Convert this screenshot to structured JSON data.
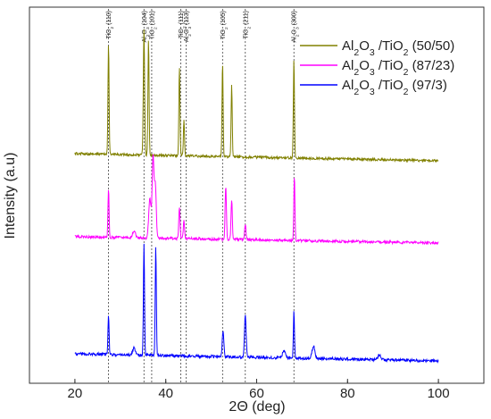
{
  "chart_data": {
    "type": "line",
    "title": "",
    "xlabel": "2Θ (deg)",
    "ylabel": "Intensity (a.u)",
    "xlim": [
      10,
      110
    ],
    "xticks": [
      20,
      40,
      60,
      80,
      100
    ],
    "grid": false,
    "legend": {
      "placement": "top-right",
      "entries": [
        {
          "label": "Al2O3 /TiO2 (50/50)",
          "color": "#808000"
        },
        {
          "label": "Al2O3 /TiO2 (87/23)",
          "color": "#ff00ff"
        },
        {
          "label": "Al2O3 /TiO2 (97/3)",
          "color": "#0000ff"
        }
      ]
    },
    "reference_lines": [
      {
        "x": 27.4,
        "label": "TiO2 (110)"
      },
      {
        "x": 35.2,
        "label": "Al2O3 (104)"
      },
      {
        "x": 36.9,
        "label": "TiO2 (101)"
      },
      {
        "x": 43.3,
        "label": "TiO2 (111)"
      },
      {
        "x": 44.5,
        "label": "Al2O3 (113)"
      },
      {
        "x": 52.5,
        "label": "TiO2 (105)"
      },
      {
        "x": 57.5,
        "label": "TiO2 (211)"
      },
      {
        "x": 68.2,
        "label": "Al2O3 (300)"
      }
    ],
    "series": [
      {
        "name": "Al2O3 /TiO2 (50/50)",
        "color": "#808000",
        "baseline": 172,
        "end": 180,
        "noise": 1.4,
        "peaks": [
          [
            27.4,
            125,
            0.12
          ],
          [
            35.2,
            140,
            0.14
          ],
          [
            36.2,
            130,
            0.12
          ],
          [
            43.0,
            100,
            0.12
          ],
          [
            44.0,
            40,
            0.12
          ],
          [
            52.5,
            105,
            0.12
          ],
          [
            54.5,
            80,
            0.12
          ],
          [
            68.2,
            110,
            0.12
          ]
        ]
      },
      {
        "name": "Al2O3 /TiO2 (87/23)",
        "color": "#ff00ff",
        "baseline": 265,
        "end": 272,
        "noise": 1.5,
        "peaks": [
          [
            27.4,
            55,
            0.12
          ],
          [
            36.5,
            45,
            0.25
          ],
          [
            37.2,
            90,
            0.2
          ],
          [
            37.7,
            60,
            0.2
          ],
          [
            43.0,
            35,
            0.14
          ],
          [
            44.0,
            20,
            0.14
          ],
          [
            53.2,
            60,
            0.14
          ],
          [
            54.5,
            45,
            0.14
          ],
          [
            57.5,
            18,
            0.14
          ],
          [
            68.3,
            72,
            0.12
          ],
          [
            33.0,
            8,
            0.3
          ]
        ]
      },
      {
        "name": "Al2O3 /TiO2 (97/3)",
        "color": "#0000ff",
        "baseline": 396,
        "end": 404,
        "noise": 1.6,
        "peaks": [
          [
            27.4,
            45,
            0.12
          ],
          [
            35.2,
            125,
            0.12
          ],
          [
            37.8,
            122,
            0.12
          ],
          [
            52.6,
            28,
            0.18
          ],
          [
            57.5,
            46,
            0.18
          ],
          [
            68.2,
            52,
            0.12
          ],
          [
            33.0,
            8,
            0.3
          ],
          [
            66.0,
            8,
            0.3
          ],
          [
            72.5,
            14,
            0.3
          ],
          [
            87.0,
            6,
            0.3
          ]
        ]
      }
    ]
  }
}
